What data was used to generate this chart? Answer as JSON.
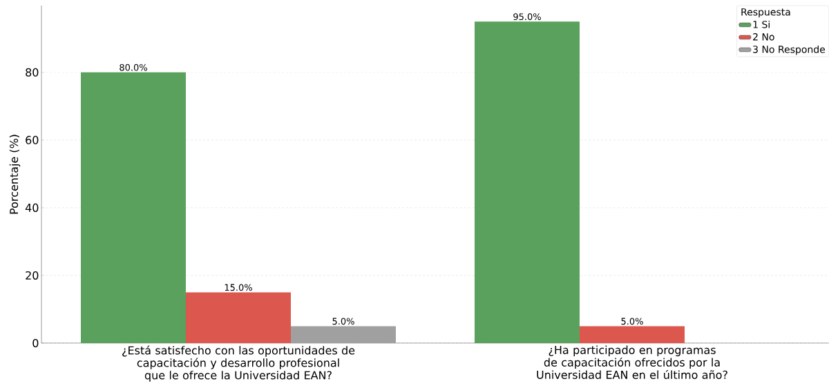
{
  "chart_data": {
    "type": "bar",
    "ylabel": "Porcentaje (%)",
    "legend_title": "Respuesta",
    "categories": [
      "¿Está satisfecho con las oportunidades de capacitación y desarrollo profesional que le ofrece la Universidad EAN?",
      "¿Ha participado en programas de capacitación ofrecidos por la Universidad EAN en el último año?"
    ],
    "series": [
      {
        "name": "1 Si",
        "color": "#59a15c",
        "values": [
          80,
          95
        ],
        "value_labels": [
          "80.0%",
          "95.0%"
        ]
      },
      {
        "name": "2 No",
        "color": "#dc574d",
        "values": [
          15,
          5
        ],
        "value_labels": [
          "15.0%",
          "5.0%"
        ]
      },
      {
        "name": "3 No Responde",
        "color": "#a0a0a0",
        "values": [
          5,
          null
        ],
        "value_labels": [
          "5.0%",
          null
        ]
      }
    ],
    "ylim": [
      0,
      99.75
    ],
    "yticks": [
      0,
      20,
      40,
      60,
      80
    ],
    "grid": "y",
    "legend": "top right"
  }
}
